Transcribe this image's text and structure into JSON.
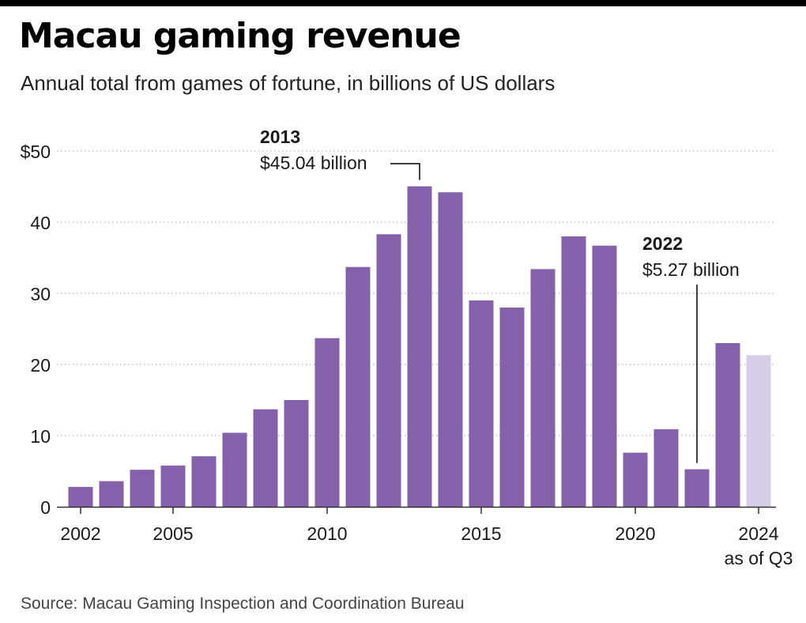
{
  "header": {
    "title": "Macau gaming revenue",
    "subtitle": "Annual total from games of fortune, in billions of US dollars"
  },
  "footer": {
    "source": "Source: Macau Gaming Inspection and Coordination Bureau"
  },
  "colors": {
    "bar": "#8461aa",
    "bar_partial": "#d6cde6",
    "gridline": "#b5b5b5",
    "axis": "#333333",
    "text": "#1a1a1a"
  },
  "chart_data": {
    "type": "bar",
    "categories": [
      "2002",
      "2003",
      "2004",
      "2005",
      "2006",
      "2007",
      "2008",
      "2009",
      "2010",
      "2011",
      "2012",
      "2013",
      "2014",
      "2015",
      "2016",
      "2017",
      "2018",
      "2019",
      "2020",
      "2021",
      "2022",
      "2023",
      "2024"
    ],
    "values": [
      2.8,
      3.6,
      5.2,
      5.8,
      7.1,
      10.4,
      13.7,
      15.0,
      23.7,
      33.7,
      38.3,
      45.04,
      44.2,
      29.0,
      28.0,
      33.4,
      38.0,
      36.7,
      7.6,
      10.9,
      5.27,
      23.0,
      21.3
    ],
    "partial_index": 22,
    "ylim": [
      0,
      50
    ],
    "yticks": [
      {
        "value": 0,
        "label": "0"
      },
      {
        "value": 10,
        "label": "10"
      },
      {
        "value": 20,
        "label": "20"
      },
      {
        "value": 30,
        "label": "30"
      },
      {
        "value": 40,
        "label": "40"
      },
      {
        "value": 50,
        "label": "$50"
      }
    ],
    "xticks": [
      {
        "index": 0,
        "label": "2002"
      },
      {
        "index": 3,
        "label": "2005"
      },
      {
        "index": 8,
        "label": "2010"
      },
      {
        "index": 13,
        "label": "2015"
      },
      {
        "index": 18,
        "label": "2020"
      },
      {
        "index": 22,
        "label": "2024",
        "sublabel": "as of Q3"
      }
    ],
    "annotations": [
      {
        "index": 11,
        "year": "2013",
        "text": "$45.04 billion"
      },
      {
        "index": 20,
        "year": "2022",
        "text": "$5.27 billion"
      }
    ],
    "grid": true,
    "xlabel": "",
    "ylabel": ""
  }
}
